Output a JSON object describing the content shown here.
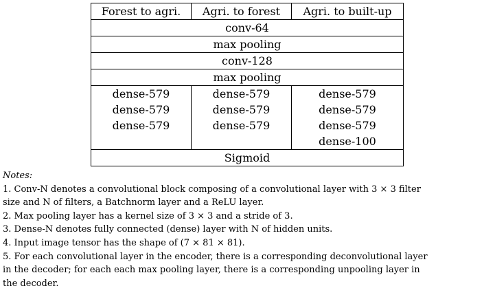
{
  "table": {
    "headers": [
      "Forest to agri.",
      "Agri. to forest",
      "Agri. to built-up"
    ],
    "shared_layers": [
      "conv-64",
      "max pooling",
      "conv-128",
      "max pooling"
    ],
    "dense_columns": [
      [
        "dense-579",
        "dense-579",
        "dense-579"
      ],
      [
        "dense-579",
        "dense-579",
        "dense-579"
      ],
      [
        "dense-579",
        "dense-579",
        "dense-579",
        "dense-100"
      ]
    ],
    "output_layer": "Sigmoid"
  },
  "notes": {
    "title": "Notes:",
    "lines": [
      "1. Conv-N denotes a convolutional block composing of a convolutional layer with 3 × 3 filter",
      "size and N of filters, a Batchnorm layer and a ReLU layer.",
      "2. Max pooling layer has a kernel size of 3 × 3 and a stride of 3.",
      "3. Dense-N denotes fully connected (dense) layer with N of hidden units.",
      "4. Input image tensor has the shape of (7 × 81 × 81).",
      "5. For each convolutional layer in the encoder, there is a corresponding deconvolutional layer",
      "in the decoder; for each each max pooling layer, there is a corresponding unpooling layer in",
      "the decoder."
    ]
  }
}
